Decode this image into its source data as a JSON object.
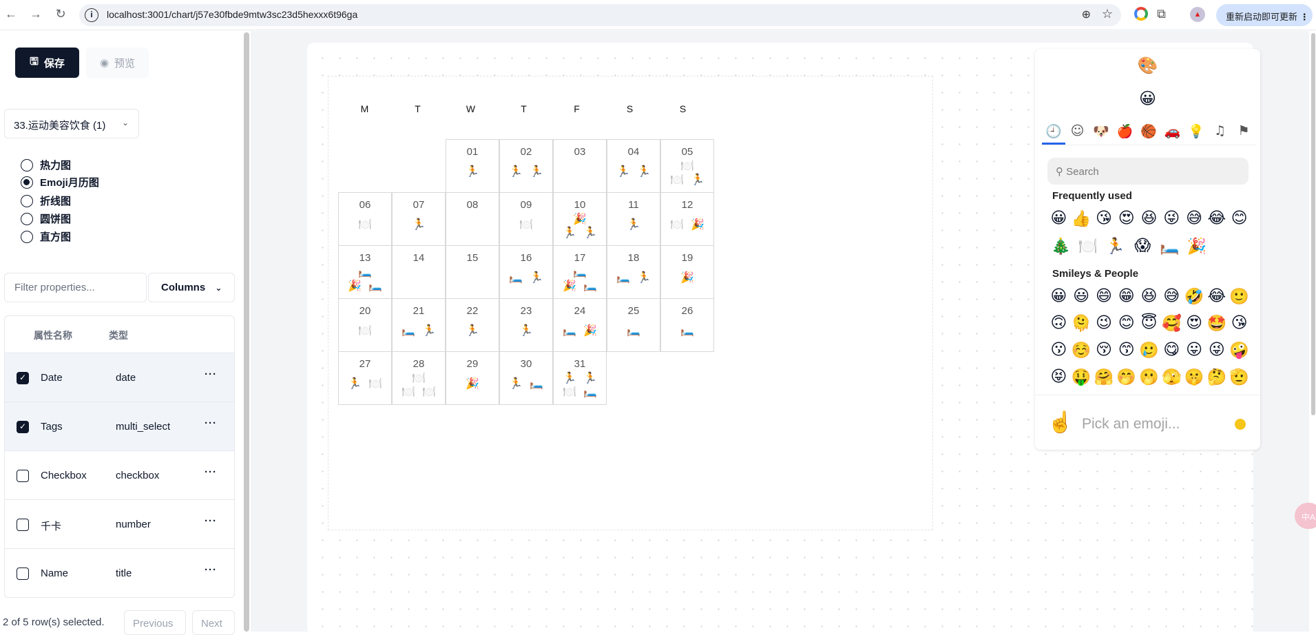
{
  "browser": {
    "url": "localhost:3001/chart/j57e30fbde9mtw3sc23d5hexxx6t96ga",
    "update_label": "重新启动即可更新"
  },
  "toolbar": {
    "save_label": "保存",
    "preview_label": "预览"
  },
  "dataset": {
    "selected": "33.运动美容饮食 (1)"
  },
  "chart_types": [
    {
      "label": "热力图",
      "checked": false
    },
    {
      "label": "Emoji月历图",
      "checked": true
    },
    {
      "label": "折线图",
      "checked": false
    },
    {
      "label": "圆饼图",
      "checked": false
    },
    {
      "label": "直方图",
      "checked": false
    }
  ],
  "filter": {
    "placeholder": "Filter properties..."
  },
  "columns_label": "Columns",
  "table": {
    "headers": [
      "属性名称",
      "类型"
    ],
    "rows": [
      {
        "name": "Date",
        "type": "date",
        "checked": true
      },
      {
        "name": "Tags",
        "type": "multi_select",
        "checked": true
      },
      {
        "name": "Checkbox",
        "type": "checkbox",
        "checked": false
      },
      {
        "name": "千卡",
        "type": "number",
        "checked": false
      },
      {
        "name": "Name",
        "type": "title",
        "checked": false
      }
    ],
    "more": "···"
  },
  "pager": {
    "info": "2 of 5 row(s) selected.",
    "previous": "Previous",
    "next": "Next"
  },
  "calendar": {
    "weekdays": [
      "M",
      "T",
      "W",
      "T",
      "F",
      "S",
      "S"
    ],
    "first_weekday_index": 2,
    "days": [
      {
        "d": "01",
        "lines": [
          [
            "🏃"
          ]
        ]
      },
      {
        "d": "02",
        "lines": [
          [
            "🏃",
            "🏃"
          ]
        ]
      },
      {
        "d": "03",
        "lines": []
      },
      {
        "d": "04",
        "lines": [
          [
            "🏃",
            "🏃"
          ]
        ]
      },
      {
        "d": "05",
        "lines": [
          [
            "🍽️"
          ],
          [
            "🍽️",
            "🏃"
          ]
        ]
      },
      {
        "d": "06",
        "lines": [
          [
            "🍽️"
          ]
        ]
      },
      {
        "d": "07",
        "lines": [
          [
            "🏃"
          ]
        ]
      },
      {
        "d": "08",
        "lines": []
      },
      {
        "d": "09",
        "lines": [
          [
            "🍽️"
          ]
        ]
      },
      {
        "d": "10",
        "lines": [
          [
            "🎉"
          ],
          [
            "🏃",
            "🏃"
          ]
        ]
      },
      {
        "d": "11",
        "lines": [
          [
            "🏃"
          ]
        ]
      },
      {
        "d": "12",
        "lines": [
          [
            "🍽️",
            "🎉"
          ]
        ]
      },
      {
        "d": "13",
        "lines": [
          [
            "🛏️"
          ],
          [
            "🎉",
            "🛏️"
          ]
        ]
      },
      {
        "d": "14",
        "lines": []
      },
      {
        "d": "15",
        "lines": []
      },
      {
        "d": "16",
        "lines": [
          [
            "🛏️",
            "🏃"
          ]
        ]
      },
      {
        "d": "17",
        "lines": [
          [
            "🛏️"
          ],
          [
            "🎉",
            "🛏️"
          ]
        ]
      },
      {
        "d": "18",
        "lines": [
          [
            "🛏️",
            "🏃"
          ]
        ]
      },
      {
        "d": "19",
        "lines": [
          [
            "🎉"
          ]
        ]
      },
      {
        "d": "20",
        "lines": [
          [
            "🍽️"
          ]
        ]
      },
      {
        "d": "21",
        "lines": [
          [
            "🛏️",
            "🏃"
          ]
        ]
      },
      {
        "d": "22",
        "lines": [
          [
            "🏃"
          ]
        ]
      },
      {
        "d": "23",
        "lines": [
          [
            "🏃"
          ]
        ]
      },
      {
        "d": "24",
        "lines": [
          [
            "🛏️",
            "🎉"
          ]
        ]
      },
      {
        "d": "25",
        "lines": [
          [
            "🛏️"
          ]
        ]
      },
      {
        "d": "26",
        "lines": [
          [
            "🛏️"
          ]
        ]
      },
      {
        "d": "27",
        "lines": [
          [
            "🏃",
            "🍽️"
          ]
        ]
      },
      {
        "d": "28",
        "lines": [
          [
            "🍽️"
          ],
          [
            "🍽️",
            "🍽️"
          ]
        ]
      },
      {
        "d": "29",
        "lines": [
          [
            "🎉"
          ]
        ]
      },
      {
        "d": "30",
        "lines": [
          [
            "🏃",
            "🛏️"
          ]
        ]
      },
      {
        "d": "31",
        "lines": [
          [
            "🏃",
            "🏃"
          ],
          [
            "🍽️",
            "🛏️"
          ]
        ]
      }
    ]
  },
  "picker": {
    "palette_icon": "🎨",
    "smiley_icon": "😀",
    "tabs": [
      {
        "icon": "🕘",
        "name": "recent",
        "active": true
      },
      {
        "icon": "☺",
        "name": "smileys"
      },
      {
        "icon": "🐶",
        "name": "animals"
      },
      {
        "icon": "🍎",
        "name": "food"
      },
      {
        "icon": "🏀",
        "name": "activities"
      },
      {
        "icon": "🚗",
        "name": "travel"
      },
      {
        "icon": "💡",
        "name": "objects"
      },
      {
        "icon": "♫",
        "name": "symbols"
      },
      {
        "icon": "⚑",
        "name": "flags"
      }
    ],
    "search_placeholder": "Search",
    "frequent_title": "Frequently used",
    "frequent": [
      [
        "😀",
        "👍",
        "😘",
        "😍",
        "😆",
        "😜",
        "😅",
        "😂",
        "😊"
      ],
      [
        "🎄",
        "🍽️",
        "🏃",
        "😱",
        "🛏️",
        "🎉"
      ]
    ],
    "smileys_title": "Smileys & People",
    "smileys": [
      [
        "😀",
        "😃",
        "😄",
        "😁",
        "😆",
        "😅",
        "🤣",
        "😂",
        "🙂"
      ],
      [
        "🙃",
        "🫠",
        "😉",
        "😊",
        "😇",
        "🥰",
        "😍",
        "🤩",
        "😘"
      ],
      [
        "😗",
        "☺️",
        "😚",
        "😙",
        "🥲",
        "😋",
        "😛",
        "😜",
        "🤪"
      ],
      [
        "😝",
        "🤑",
        "🤗",
        "🤭",
        "🫢",
        "🫣",
        "🤫",
        "🤔",
        "🫡"
      ]
    ],
    "footer_emoji": "☝️",
    "footer_placeholder": "Pick an emoji...",
    "skin_tone_color": "#f5c518"
  },
  "fab_label": "中A"
}
